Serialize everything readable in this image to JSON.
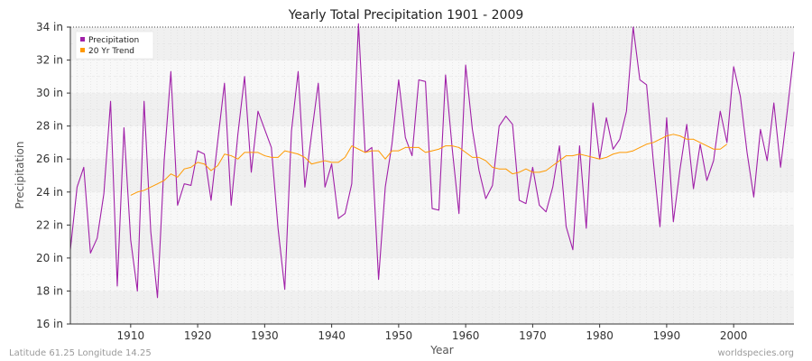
{
  "chart_data": {
    "type": "line",
    "title": "Yearly Total Precipitation 1901 - 2009",
    "xlabel": "Year",
    "ylabel": "Precipitation",
    "xlim": [
      1901,
      2009
    ],
    "ylim": [
      16,
      34
    ],
    "x_ticks": [
      1910,
      1920,
      1930,
      1940,
      1950,
      1960,
      1970,
      1980,
      1990,
      2000
    ],
    "y_ticks": [
      {
        "value": 16,
        "label": "16 in"
      },
      {
        "value": 18,
        "label": "18 in"
      },
      {
        "value": 20,
        "label": "20 in"
      },
      {
        "value": 22,
        "label": "22 in"
      },
      {
        "value": 24,
        "label": "24 in"
      },
      {
        "value": 26,
        "label": "26 in"
      },
      {
        "value": 28,
        "label": "28 in"
      },
      {
        "value": 30,
        "label": "30 in"
      },
      {
        "value": 32,
        "label": "32 in"
      },
      {
        "value": 34,
        "label": "34 in"
      }
    ],
    "grid": true,
    "legend_position": "top-left",
    "colors": {
      "precipitation": "#a020a8",
      "trend": "#ff9900",
      "band_dark": "#f0f0f0",
      "band_light": "#f8f8f8"
    },
    "series": [
      {
        "name": "Precipitation",
        "x_start": 1901,
        "values": [
          20.5,
          24.3,
          25.5,
          20.3,
          21.2,
          23.9,
          29.5,
          18.3,
          27.9,
          21.1,
          18.0,
          29.5,
          21.6,
          17.6,
          25.9,
          31.3,
          23.2,
          24.5,
          24.4,
          26.5,
          26.3,
          23.5,
          27.1,
          30.6,
          23.2,
          27.5,
          31.0,
          25.2,
          28.9,
          27.8,
          26.7,
          21.8,
          18.1,
          27.7,
          31.3,
          24.3,
          27.5,
          30.6,
          24.3,
          25.7,
          22.4,
          22.7,
          24.5,
          34.2,
          26.4,
          26.7,
          18.7,
          24.3,
          26.9,
          30.8,
          27.3,
          26.2,
          30.8,
          30.7,
          23.0,
          22.9,
          31.1,
          26.6,
          22.7,
          31.7,
          27.8,
          25.3,
          23.6,
          24.4,
          28.0,
          28.6,
          28.1,
          23.5,
          23.3,
          25.5,
          23.2,
          22.8,
          24.3,
          26.8,
          21.9,
          20.5,
          26.8,
          21.8,
          29.4,
          26.0,
          28.5,
          26.6,
          27.2,
          28.9,
          34.0,
          30.8,
          30.5,
          25.9,
          21.9,
          28.5,
          22.2,
          25.4,
          28.1,
          24.2,
          26.9,
          24.7,
          25.9,
          28.9,
          27.0,
          31.6,
          29.8,
          26.4,
          23.7,
          27.8,
          25.9,
          29.4,
          25.5,
          28.9,
          32.5
        ]
      },
      {
        "name": "20 Yr Trend",
        "x_start": 1910,
        "values": [
          23.8,
          24.0,
          24.1,
          24.3,
          24.5,
          24.7,
          25.1,
          24.9,
          25.4,
          25.5,
          25.8,
          25.7,
          25.3,
          25.6,
          26.3,
          26.2,
          26.0,
          26.4,
          26.4,
          26.4,
          26.2,
          26.1,
          26.1,
          26.5,
          26.4,
          26.3,
          26.1,
          25.7,
          25.8,
          25.9,
          25.8,
          25.8,
          26.1,
          26.8,
          26.6,
          26.4,
          26.5,
          26.5,
          26.0,
          26.5,
          26.5,
          26.7,
          26.7,
          26.7,
          26.4,
          26.5,
          26.6,
          26.8,
          26.8,
          26.7,
          26.4,
          26.1,
          26.1,
          25.9,
          25.5,
          25.4,
          25.4,
          25.1,
          25.2,
          25.4,
          25.2,
          25.2,
          25.3,
          25.6,
          25.9,
          26.2,
          26.2,
          26.3,
          26.2,
          26.1,
          26.0,
          26.1,
          26.3,
          26.4,
          26.4,
          26.5,
          26.7,
          26.9,
          27.0,
          27.2,
          27.4,
          27.5,
          27.4,
          27.2,
          27.2,
          27.0,
          26.8,
          26.6,
          26.6,
          26.9
        ]
      }
    ]
  },
  "footer": {
    "left": "Latitude 61.25 Longitude 14.25",
    "right": "worldspecies.org"
  }
}
